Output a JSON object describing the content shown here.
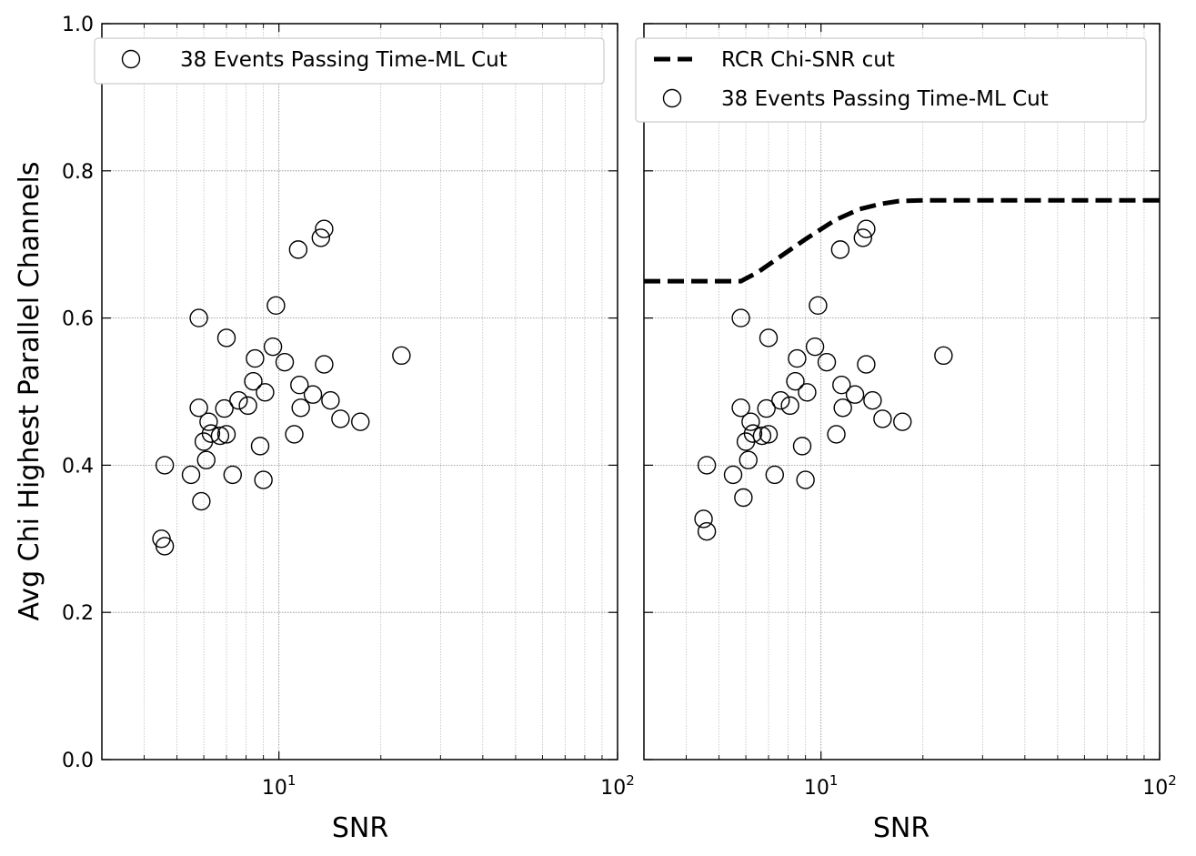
{
  "chart_data": [
    {
      "type": "scatter",
      "xscale": "log",
      "xlim": [
        3,
        100
      ],
      "ylim": [
        0.0,
        1.0
      ],
      "xlabel": "SNR",
      "ylabel": "Avg Chi Highest Parallel Channels",
      "x_tick_labels": [
        {
          "base": "10",
          "exp": "1"
        },
        {
          "base": "10",
          "exp": "2"
        }
      ],
      "y_tick_labels": [
        "0.0",
        "0.2",
        "0.4",
        "0.6",
        "0.8",
        "1.0"
      ],
      "grid": true,
      "legend_position": "top-left",
      "series": [
        {
          "name": "38 Events Passing Time-ML Cut",
          "marker": "open-circle",
          "points": [
            [
              4.5,
              0.3
            ],
            [
              4.6,
              0.29
            ],
            [
              4.6,
              0.4
            ],
            [
              5.5,
              0.387
            ],
            [
              5.8,
              0.6
            ],
            [
              5.8,
              0.478
            ],
            [
              5.9,
              0.351
            ],
            [
              6.0,
              0.432
            ],
            [
              6.1,
              0.407
            ],
            [
              6.2,
              0.459
            ],
            [
              6.3,
              0.443
            ],
            [
              6.7,
              0.44
            ],
            [
              6.9,
              0.477
            ],
            [
              7.0,
              0.573
            ],
            [
              7.0,
              0.442
            ],
            [
              7.3,
              0.387
            ],
            [
              7.6,
              0.488
            ],
            [
              8.1,
              0.481
            ],
            [
              8.4,
              0.514
            ],
            [
              8.5,
              0.545
            ],
            [
              8.8,
              0.426
            ],
            [
              9.0,
              0.38
            ],
            [
              9.1,
              0.499
            ],
            [
              9.6,
              0.561
            ],
            [
              9.8,
              0.617
            ],
            [
              10.4,
              0.54
            ],
            [
              11.1,
              0.442
            ],
            [
              11.4,
              0.693
            ],
            [
              11.5,
              0.509
            ],
            [
              11.6,
              0.478
            ],
            [
              12.6,
              0.496
            ],
            [
              13.3,
              0.709
            ],
            [
              13.6,
              0.537
            ],
            [
              13.6,
              0.721
            ],
            [
              14.2,
              0.488
            ],
            [
              15.2,
              0.463
            ],
            [
              17.4,
              0.459
            ],
            [
              23.0,
              0.549
            ]
          ]
        }
      ]
    },
    {
      "type": "scatter",
      "xscale": "log",
      "xlim": [
        3,
        100
      ],
      "ylim": [
        0.0,
        1.0
      ],
      "xlabel": "SNR",
      "ylabel": "",
      "x_tick_labels": [
        {
          "base": "10",
          "exp": "1"
        },
        {
          "base": "10",
          "exp": "2"
        }
      ],
      "grid": true,
      "legend_position": "top-right",
      "series": [
        {
          "name": "RCR Chi-SNR cut",
          "type": "line",
          "style": "dashed",
          "x": [
            3,
            4,
            5,
            5.8,
            6.5,
            7.5,
            9,
            11,
            13,
            15,
            17,
            20,
            30,
            50,
            100
          ],
          "values": [
            0.65,
            0.65,
            0.65,
            0.65,
            0.662,
            0.682,
            0.707,
            0.733,
            0.748,
            0.755,
            0.759,
            0.76,
            0.76,
            0.76,
            0.76
          ]
        },
        {
          "name": "38 Events Passing Time-ML Cut",
          "marker": "open-circle",
          "points": [
            [
              4.5,
              0.327
            ],
            [
              4.6,
              0.31
            ],
            [
              4.6,
              0.4
            ],
            [
              5.5,
              0.387
            ],
            [
              5.8,
              0.6
            ],
            [
              5.8,
              0.478
            ],
            [
              5.9,
              0.356
            ],
            [
              6.0,
              0.432
            ],
            [
              6.1,
              0.407
            ],
            [
              6.2,
              0.459
            ],
            [
              6.3,
              0.443
            ],
            [
              6.7,
              0.44
            ],
            [
              6.9,
              0.477
            ],
            [
              7.0,
              0.573
            ],
            [
              7.0,
              0.442
            ],
            [
              7.3,
              0.387
            ],
            [
              7.6,
              0.488
            ],
            [
              8.1,
              0.481
            ],
            [
              8.4,
              0.514
            ],
            [
              8.5,
              0.545
            ],
            [
              8.8,
              0.426
            ],
            [
              9.0,
              0.38
            ],
            [
              9.1,
              0.499
            ],
            [
              9.6,
              0.561
            ],
            [
              9.8,
              0.617
            ],
            [
              10.4,
              0.54
            ],
            [
              11.1,
              0.442
            ],
            [
              11.4,
              0.693
            ],
            [
              11.5,
              0.509
            ],
            [
              11.6,
              0.478
            ],
            [
              12.6,
              0.496
            ],
            [
              13.3,
              0.709
            ],
            [
              13.6,
              0.537
            ],
            [
              13.6,
              0.721
            ],
            [
              14.2,
              0.488
            ],
            [
              15.2,
              0.463
            ],
            [
              17.4,
              0.459
            ],
            [
              23.0,
              0.549
            ]
          ]
        }
      ]
    }
  ]
}
